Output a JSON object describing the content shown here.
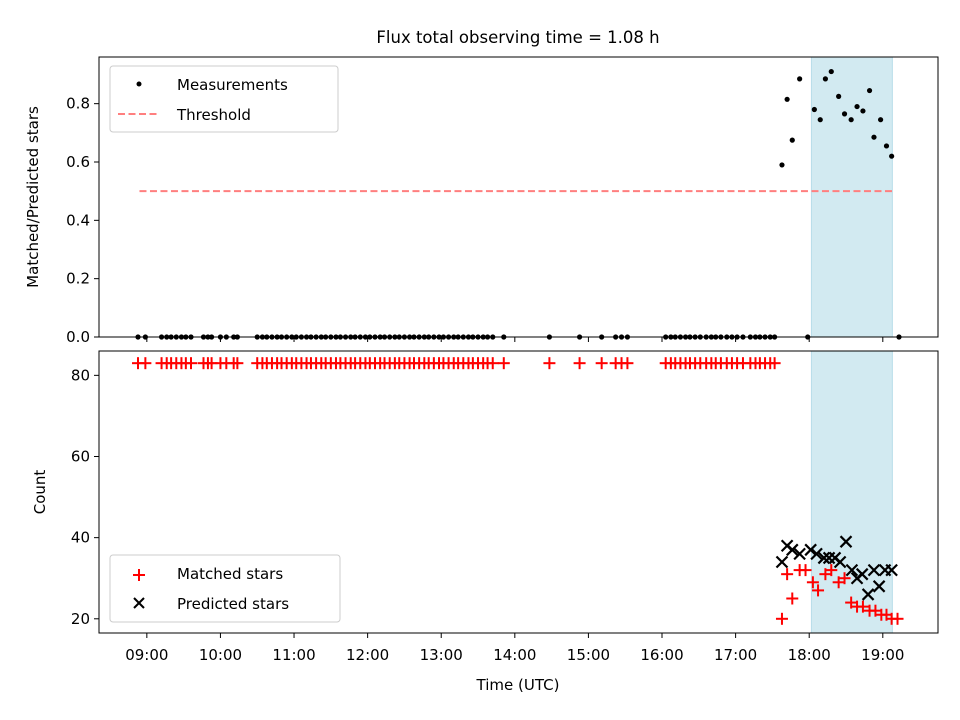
{
  "title": "Flux total observing time = 1.08 h",
  "colors": {
    "measurement": "#000000",
    "threshold": "#ff7f7f",
    "matched": "#ff0000",
    "predicted": "#000000",
    "span": "#add8e6"
  },
  "chart_data": [
    {
      "type": "scatter",
      "panel": "top",
      "ylabel": "Matched/Predicted stars",
      "ylim": [
        0,
        0.96
      ],
      "yticks": [
        0.0,
        0.2,
        0.4,
        0.6,
        0.8
      ],
      "ytick_labels": [
        "0.0",
        "0.2",
        "0.4",
        "0.6",
        "0.8"
      ],
      "xlim_hours": [
        8.35,
        19.75
      ],
      "highlight_span_hours": [
        18.03,
        19.13
      ],
      "legend": {
        "position": "upper-left",
        "measurements": "Measurements",
        "threshold": "Threshold"
      },
      "threshold": {
        "value": 0.5,
        "x_start": 8.9,
        "x_end": 19.13
      },
      "measurements": {
        "x": [
          8.88,
          8.98,
          9.2,
          9.27,
          9.33,
          9.4,
          9.47,
          9.53,
          9.6,
          9.77,
          9.83,
          9.88,
          10.0,
          10.08,
          10.18,
          10.23,
          10.5,
          10.57,
          10.63,
          10.7,
          10.77,
          10.83,
          10.9,
          10.97,
          11.03,
          11.1,
          11.17,
          11.23,
          11.3,
          11.37,
          11.43,
          11.5,
          11.57,
          11.63,
          11.7,
          11.77,
          11.83,
          11.9,
          11.97,
          12.03,
          12.1,
          12.17,
          12.23,
          12.3,
          12.37,
          12.43,
          12.5,
          12.57,
          12.63,
          12.7,
          12.77,
          12.83,
          12.9,
          12.97,
          13.03,
          13.1,
          13.17,
          13.23,
          13.3,
          13.37,
          13.43,
          13.5,
          13.57,
          13.63,
          13.7,
          13.85,
          14.47,
          14.88,
          15.18,
          15.37,
          15.45,
          15.53,
          16.05,
          16.12,
          16.18,
          16.25,
          16.32,
          16.38,
          16.45,
          16.52,
          16.6,
          16.67,
          16.73,
          16.8,
          16.88,
          16.95,
          17.02,
          17.1,
          17.2,
          17.27,
          17.33,
          17.4,
          17.47,
          17.53,
          17.63,
          17.7,
          17.77,
          17.87,
          17.98,
          18.07,
          18.15,
          18.22,
          18.3,
          18.4,
          18.48,
          18.57,
          18.65,
          18.73,
          18.82,
          18.88,
          18.97,
          19.05,
          19.12,
          19.22
        ],
        "y": [
          0,
          0,
          0,
          0,
          0,
          0,
          0,
          0,
          0,
          0,
          0,
          0,
          0,
          0,
          0,
          0,
          0,
          0,
          0,
          0,
          0,
          0,
          0,
          0,
          0,
          0,
          0,
          0,
          0,
          0,
          0,
          0,
          0,
          0,
          0,
          0,
          0,
          0,
          0,
          0,
          0,
          0,
          0,
          0,
          0,
          0,
          0,
          0,
          0,
          0,
          0,
          0,
          0,
          0,
          0,
          0,
          0,
          0,
          0,
          0,
          0,
          0,
          0,
          0,
          0,
          0,
          0,
          0,
          0,
          0,
          0,
          0,
          0,
          0,
          0,
          0,
          0,
          0,
          0,
          0,
          0,
          0,
          0,
          0,
          0,
          0,
          0,
          0,
          0,
          0,
          0,
          0,
          0,
          0,
          0.59,
          0.815,
          0.675,
          0.885,
          0,
          0.78,
          0.745,
          0.885,
          0.91,
          0.825,
          0.765,
          0.745,
          0.79,
          0.775,
          0.845,
          0.685,
          0.745,
          0.655,
          0.62,
          0
        ]
      }
    },
    {
      "type": "scatter",
      "panel": "bottom",
      "xlabel": "Time (UTC)",
      "ylabel": "Count",
      "ylim": [
        16.5,
        86
      ],
      "yticks": [
        20,
        40,
        60,
        80
      ],
      "ytick_labels": [
        "20",
        "40",
        "60",
        "80"
      ],
      "xticks_hours": [
        9,
        10,
        11,
        12,
        13,
        14,
        15,
        16,
        17,
        18,
        19
      ],
      "xtick_labels": [
        "09:00",
        "10:00",
        "11:00",
        "12:00",
        "13:00",
        "14:00",
        "15:00",
        "16:00",
        "17:00",
        "18:00",
        "19:00"
      ],
      "xlim_hours": [
        8.35,
        19.75
      ],
      "highlight_span_hours": [
        18.03,
        19.13
      ],
      "legend": {
        "position": "lower-left",
        "matched": "Matched stars",
        "predicted": "Predicted stars"
      },
      "matched": {
        "x": [
          8.88,
          8.98,
          9.2,
          9.27,
          9.33,
          9.4,
          9.47,
          9.53,
          9.6,
          9.77,
          9.83,
          9.88,
          10.0,
          10.08,
          10.18,
          10.23,
          10.5,
          10.57,
          10.63,
          10.7,
          10.77,
          10.83,
          10.9,
          10.97,
          11.03,
          11.1,
          11.17,
          11.23,
          11.3,
          11.37,
          11.43,
          11.5,
          11.57,
          11.63,
          11.7,
          11.77,
          11.83,
          11.9,
          11.97,
          12.03,
          12.1,
          12.17,
          12.23,
          12.3,
          12.37,
          12.43,
          12.5,
          12.57,
          12.63,
          12.7,
          12.77,
          12.83,
          12.9,
          12.97,
          13.03,
          13.1,
          13.17,
          13.23,
          13.3,
          13.37,
          13.43,
          13.5,
          13.57,
          13.63,
          13.7,
          13.85,
          14.47,
          14.88,
          15.18,
          15.37,
          15.45,
          15.53,
          16.05,
          16.12,
          16.18,
          16.25,
          16.32,
          16.38,
          16.45,
          16.52,
          16.6,
          16.67,
          16.73,
          16.8,
          16.88,
          16.95,
          17.02,
          17.1,
          17.2,
          17.27,
          17.33,
          17.4,
          17.47,
          17.53,
          17.63,
          17.7,
          17.77,
          17.87,
          17.95,
          18.05,
          18.12,
          18.22,
          18.3,
          18.4,
          18.48,
          18.57,
          18.65,
          18.73,
          18.82,
          18.9,
          18.98,
          19.05,
          19.12,
          19.2
        ],
        "y": [
          83,
          83,
          83,
          83,
          83,
          83,
          83,
          83,
          83,
          83,
          83,
          83,
          83,
          83,
          83,
          83,
          83,
          83,
          83,
          83,
          83,
          83,
          83,
          83,
          83,
          83,
          83,
          83,
          83,
          83,
          83,
          83,
          83,
          83,
          83,
          83,
          83,
          83,
          83,
          83,
          83,
          83,
          83,
          83,
          83,
          83,
          83,
          83,
          83,
          83,
          83,
          83,
          83,
          83,
          83,
          83,
          83,
          83,
          83,
          83,
          83,
          83,
          83,
          83,
          83,
          83,
          83,
          83,
          83,
          83,
          83,
          83,
          83,
          83,
          83,
          83,
          83,
          83,
          83,
          83,
          83,
          83,
          83,
          83,
          83,
          83,
          83,
          83,
          83,
          83,
          83,
          83,
          83,
          83,
          20,
          31,
          25,
          32,
          32,
          29,
          27,
          31,
          32,
          29,
          30,
          24,
          23,
          23,
          22,
          22,
          21,
          21,
          20,
          20
        ]
      },
      "predicted": {
        "x": [
          17.63,
          17.7,
          17.77,
          17.87,
          18.02,
          18.1,
          18.2,
          18.27,
          18.35,
          18.42,
          18.5,
          18.58,
          18.65,
          18.72,
          18.8,
          18.88,
          18.95,
          19.03,
          19.12
        ],
        "y": [
          34,
          38,
          37,
          36,
          37,
          36,
          35,
          35,
          35,
          34,
          39,
          32,
          30,
          31,
          26,
          32,
          28,
          32,
          32
        ]
      }
    }
  ]
}
